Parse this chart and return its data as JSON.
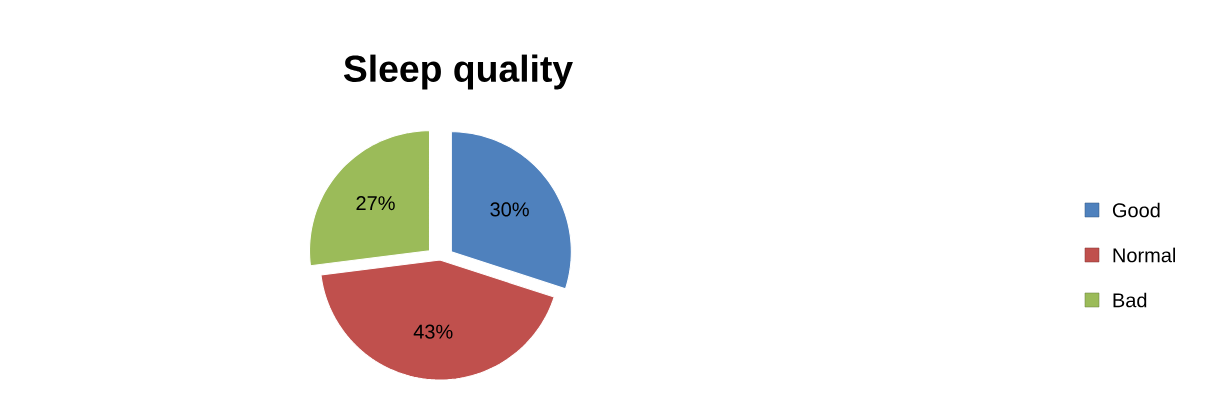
{
  "chart_data": {
    "type": "pie",
    "title": "Sleep quality",
    "categories": [
      "Good",
      "Normal",
      "Bad"
    ],
    "values": [
      30,
      43,
      27
    ],
    "value_labels": [
      "30%",
      "43%",
      "27%"
    ],
    "colors": [
      "#4f81bd",
      "#c0504d",
      "#9bbb59"
    ],
    "legend": "right"
  }
}
